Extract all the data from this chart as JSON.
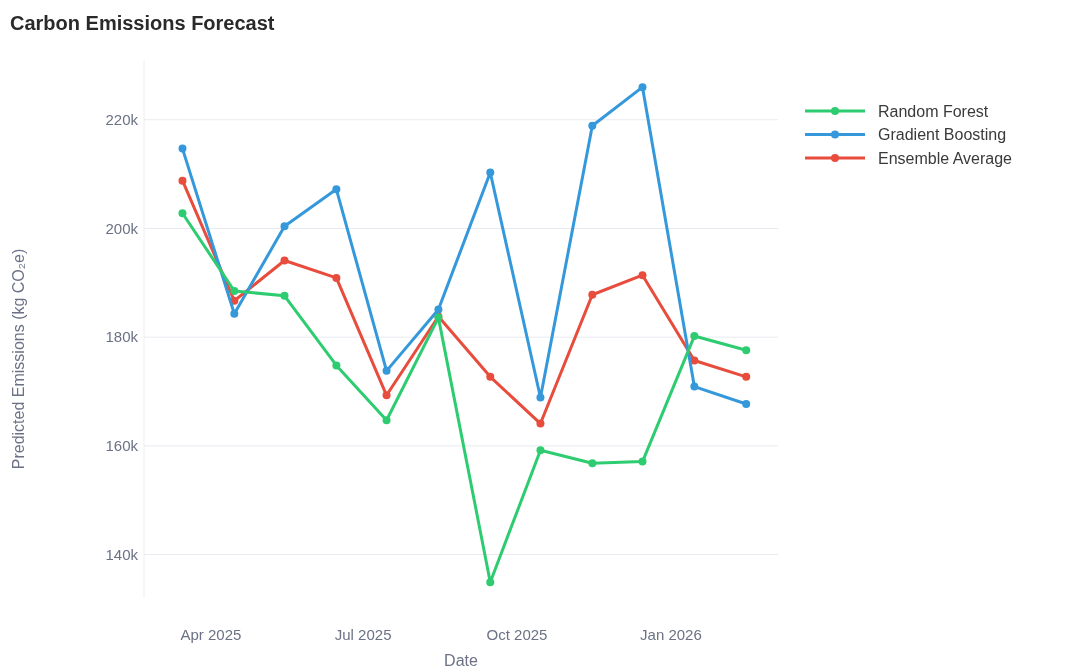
{
  "chart_data": {
    "type": "line",
    "title": "Carbon Emissions Forecast",
    "xlabel": "Date",
    "ylabel": "Predicted Emissions (kg CO₂e)",
    "x": [
      "2025-03-15",
      "2025-04-15",
      "2025-05-15",
      "2025-06-15",
      "2025-07-15",
      "2025-08-15",
      "2025-09-15",
      "2025-10-15",
      "2025-11-15",
      "2025-12-15",
      "2026-01-15",
      "2026-02-15"
    ],
    "series": [
      {
        "name": "Random Forest",
        "color": "#2ecc71",
        "values": [
          202800,
          188500,
          187600,
          174800,
          164700,
          183600,
          134900,
          159200,
          156800,
          157100,
          180200,
          177600
        ]
      },
      {
        "name": "Gradient Boosting",
        "color": "#3498db",
        "values": [
          214700,
          184300,
          200400,
          207200,
          173800,
          185100,
          210300,
          168900,
          218900,
          226000,
          170900,
          167700
        ]
      },
      {
        "name": "Ensemble Average",
        "color": "#e74c3c",
        "values": [
          208800,
          186700,
          194100,
          190900,
          169300,
          183800,
          172700,
          164100,
          187800,
          191400,
          175700,
          172700
        ]
      }
    ],
    "xlim": [
      "2025-02-20",
      "2026-03-06"
    ],
    "xticks": [
      {
        "value": "2025-04-01",
        "label": "Apr 2025"
      },
      {
        "value": "2025-07-01",
        "label": "Jul 2025"
      },
      {
        "value": "2025-10-01",
        "label": "Oct 2025"
      },
      {
        "value": "2026-01-01",
        "label": "Jan 2026"
      }
    ],
    "ylim": [
      132000,
      231000
    ],
    "yticks": [
      {
        "value": 140000,
        "label": "140k"
      },
      {
        "value": 160000,
        "label": "160k"
      },
      {
        "value": 180000,
        "label": "180k"
      },
      {
        "value": 200000,
        "label": "200k"
      },
      {
        "value": 220000,
        "label": "220k"
      }
    ],
    "grid": "y",
    "legend": "top right",
    "marker": "circle",
    "line_style": "solid"
  }
}
